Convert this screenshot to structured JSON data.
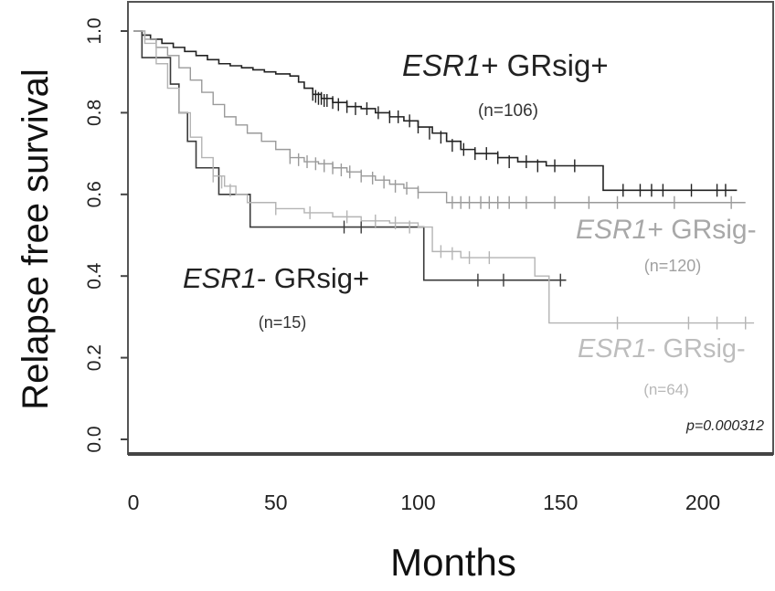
{
  "chart_data": {
    "type": "line",
    "subtype": "kaplan-meier-step",
    "xlabel": "Months",
    "ylabel": "Relapse free survival",
    "xlim": [
      0,
      225
    ],
    "ylim": [
      -0.04,
      1.04
    ],
    "x_ticks": [
      0,
      50,
      100,
      150,
      200
    ],
    "y_ticks": [
      0.0,
      0.2,
      0.4,
      0.6,
      0.8,
      1.0
    ],
    "x_tick_labels": [
      "0",
      "50",
      "100",
      "150",
      "200"
    ],
    "y_tick_labels": [
      "0.0",
      "0.2",
      "0.4",
      "0.6",
      "0.8",
      "1.0"
    ],
    "grid": false,
    "p_value": "p=0.000312",
    "colors": {
      "esr1pos_grsigpos": "#222222",
      "esr1pos_grsigneg": "#9a9a9a",
      "esr1neg_grsigpos": "#3a3a3a",
      "esr1neg_grsigneg": "#b4b4b4"
    },
    "series": [
      {
        "name": "ESR1+ GRsig+",
        "name_italic": "ESR1",
        "name_rest": "+ GRsig+",
        "n_label": "(n=106)",
        "color_key": "esr1pos_grsigpos",
        "steps": [
          [
            0,
            1.0
          ],
          [
            3,
            0.99
          ],
          [
            6,
            0.98
          ],
          [
            10,
            0.97
          ],
          [
            14,
            0.96
          ],
          [
            18,
            0.95
          ],
          [
            22,
            0.94
          ],
          [
            26,
            0.93
          ],
          [
            30,
            0.92
          ],
          [
            34,
            0.915
          ],
          [
            38,
            0.91
          ],
          [
            42,
            0.905
          ],
          [
            46,
            0.9
          ],
          [
            50,
            0.895
          ],
          [
            55,
            0.89
          ],
          [
            58,
            0.875
          ],
          [
            60,
            0.86
          ],
          [
            63,
            0.845
          ],
          [
            66,
            0.835
          ],
          [
            70,
            0.825
          ],
          [
            75,
            0.815
          ],
          [
            80,
            0.81
          ],
          [
            85,
            0.8
          ],
          [
            90,
            0.79
          ],
          [
            95,
            0.78
          ],
          [
            100,
            0.765
          ],
          [
            105,
            0.75
          ],
          [
            110,
            0.73
          ],
          [
            115,
            0.71
          ],
          [
            120,
            0.7
          ],
          [
            128,
            0.69
          ],
          [
            135,
            0.68
          ],
          [
            145,
            0.67
          ],
          [
            165,
            0.61
          ],
          [
            212,
            0.61
          ]
        ],
        "censored": [
          [
            63,
            0.845
          ],
          [
            64,
            0.84
          ],
          [
            65,
            0.835
          ],
          [
            66,
            0.835
          ],
          [
            67,
            0.83
          ],
          [
            68,
            0.83
          ],
          [
            70,
            0.825
          ],
          [
            72,
            0.82
          ],
          [
            75,
            0.815
          ],
          [
            78,
            0.81
          ],
          [
            82,
            0.81
          ],
          [
            86,
            0.8
          ],
          [
            90,
            0.79
          ],
          [
            93,
            0.79
          ],
          [
            97,
            0.78
          ],
          [
            100,
            0.765
          ],
          [
            104,
            0.75
          ],
          [
            108,
            0.74
          ],
          [
            112,
            0.72
          ],
          [
            116,
            0.71
          ],
          [
            120,
            0.7
          ],
          [
            124,
            0.7
          ],
          [
            128,
            0.69
          ],
          [
            132,
            0.68
          ],
          [
            138,
            0.68
          ],
          [
            142,
            0.67
          ],
          [
            148,
            0.67
          ],
          [
            155,
            0.67
          ],
          [
            172,
            0.61
          ],
          [
            178,
            0.61
          ],
          [
            182,
            0.61
          ],
          [
            186,
            0.61
          ],
          [
            196,
            0.61
          ],
          [
            205,
            0.61
          ],
          [
            208,
            0.61
          ]
        ]
      },
      {
        "name": "ESR1+ GRsig-",
        "name_italic": "ESR1",
        "name_rest": "+ GRsig-",
        "n_label": "(n=120)",
        "color_key": "esr1pos_grsigneg",
        "steps": [
          [
            0,
            1.0
          ],
          [
            4,
            0.98
          ],
          [
            8,
            0.96
          ],
          [
            12,
            0.94
          ],
          [
            16,
            0.91
          ],
          [
            20,
            0.88
          ],
          [
            24,
            0.85
          ],
          [
            28,
            0.82
          ],
          [
            32,
            0.79
          ],
          [
            36,
            0.77
          ],
          [
            40,
            0.75
          ],
          [
            45,
            0.73
          ],
          [
            50,
            0.71
          ],
          [
            55,
            0.69
          ],
          [
            60,
            0.68
          ],
          [
            65,
            0.675
          ],
          [
            70,
            0.665
          ],
          [
            75,
            0.655
          ],
          [
            80,
            0.645
          ],
          [
            85,
            0.635
          ],
          [
            90,
            0.625
          ],
          [
            95,
            0.615
          ],
          [
            100,
            0.605
          ],
          [
            110,
            0.58
          ],
          [
            215,
            0.58
          ]
        ],
        "censored": [
          [
            55,
            0.69
          ],
          [
            58,
            0.685
          ],
          [
            61,
            0.68
          ],
          [
            64,
            0.675
          ],
          [
            67,
            0.67
          ],
          [
            70,
            0.665
          ],
          [
            73,
            0.66
          ],
          [
            76,
            0.655
          ],
          [
            80,
            0.645
          ],
          [
            84,
            0.64
          ],
          [
            88,
            0.63
          ],
          [
            92,
            0.62
          ],
          [
            96,
            0.615
          ],
          [
            100,
            0.605
          ],
          [
            112,
            0.58
          ],
          [
            115,
            0.58
          ],
          [
            118,
            0.58
          ],
          [
            122,
            0.58
          ],
          [
            125,
            0.58
          ],
          [
            128,
            0.58
          ],
          [
            132,
            0.58
          ],
          [
            138,
            0.58
          ],
          [
            148,
            0.58
          ],
          [
            160,
            0.58
          ],
          [
            170,
            0.58
          ],
          [
            190,
            0.58
          ],
          [
            210,
            0.58
          ]
        ]
      },
      {
        "name": "ESR1- GRsig+",
        "name_italic": "ESR1",
        "name_rest": "- GRsig+",
        "n_label": "(n=15)",
        "color_key": "esr1neg_grsigpos",
        "steps": [
          [
            0,
            1.0
          ],
          [
            3,
            0.935
          ],
          [
            13,
            0.87
          ],
          [
            16,
            0.8
          ],
          [
            19,
            0.73
          ],
          [
            22,
            0.665
          ],
          [
            30,
            0.6
          ],
          [
            41,
            0.52
          ],
          [
            102,
            0.39
          ],
          [
            152,
            0.39
          ]
        ],
        "censored": [
          [
            74,
            0.52
          ],
          [
            80,
            0.52
          ],
          [
            121,
            0.39
          ],
          [
            130,
            0.39
          ],
          [
            150,
            0.39
          ]
        ]
      },
      {
        "name": "ESR1- GRsig-",
        "name_italic": "ESR1",
        "name_rest": "- GRsig-",
        "n_label": "(n=64)",
        "color_key": "esr1neg_grsigneg",
        "steps": [
          [
            0,
            1.0
          ],
          [
            4,
            0.97
          ],
          [
            8,
            0.92
          ],
          [
            12,
            0.86
          ],
          [
            16,
            0.8
          ],
          [
            20,
            0.74
          ],
          [
            24,
            0.69
          ],
          [
            28,
            0.645
          ],
          [
            32,
            0.62
          ],
          [
            36,
            0.6
          ],
          [
            40,
            0.58
          ],
          [
            50,
            0.565
          ],
          [
            60,
            0.555
          ],
          [
            70,
            0.545
          ],
          [
            80,
            0.535
          ],
          [
            90,
            0.53
          ],
          [
            100,
            0.52
          ],
          [
            105,
            0.46
          ],
          [
            115,
            0.445
          ],
          [
            141,
            0.4
          ],
          [
            146,
            0.285
          ],
          [
            218,
            0.285
          ]
        ],
        "censored": [
          [
            28,
            0.645
          ],
          [
            31,
            0.63
          ],
          [
            34,
            0.61
          ],
          [
            50,
            0.565
          ],
          [
            62,
            0.555
          ],
          [
            75,
            0.545
          ],
          [
            85,
            0.535
          ],
          [
            92,
            0.53
          ],
          [
            97,
            0.52
          ],
          [
            108,
            0.46
          ],
          [
            112,
            0.455
          ],
          [
            118,
            0.445
          ],
          [
            125,
            0.445
          ],
          [
            170,
            0.285
          ],
          [
            195,
            0.285
          ],
          [
            205,
            0.285
          ],
          [
            215,
            0.285
          ]
        ]
      }
    ]
  }
}
